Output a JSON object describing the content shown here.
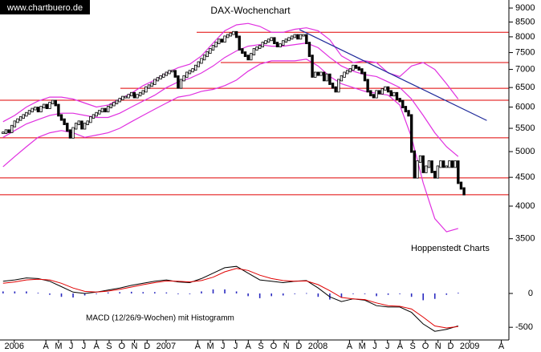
{
  "chart_data": [
    {
      "type": "candlestick",
      "title": "DAX-Wochenchart",
      "watermark": "www.chartbuero.de",
      "source": "Hoppenstedt Charts",
      "log_scale": true,
      "ylim": [
        3200,
        9150
      ],
      "yticks": [
        9000,
        8500,
        8000,
        7500,
        7000,
        6500,
        6000,
        5500,
        5000,
        4500,
        4000,
        3500
      ],
      "xlim": [
        0,
        40.1
      ],
      "xticks": [
        {
          "value": 1,
          "label": "2006"
        },
        {
          "value": 3.5,
          "label": "A"
        },
        {
          "value": 4.5,
          "label": "M"
        },
        {
          "value": 5.5,
          "label": "J"
        },
        {
          "value": 6.5,
          "label": "J"
        },
        {
          "value": 7.5,
          "label": "A"
        },
        {
          "value": 8.5,
          "label": "S"
        },
        {
          "value": 9.5,
          "label": "O"
        },
        {
          "value": 10.5,
          "label": "N"
        },
        {
          "value": 11.5,
          "label": "D"
        },
        {
          "value": 13,
          "label": "2007"
        },
        {
          "value": 15.5,
          "label": "A"
        },
        {
          "value": 16.5,
          "label": "M"
        },
        {
          "value": 17.5,
          "label": "J"
        },
        {
          "value": 18.5,
          "label": "J"
        },
        {
          "value": 19.5,
          "label": "A"
        },
        {
          "value": 20.5,
          "label": "S"
        },
        {
          "value": 21.5,
          "label": "O"
        },
        {
          "value": 22.5,
          "label": "N"
        },
        {
          "value": 23.5,
          "label": "D"
        },
        {
          "value": 25,
          "label": "2008"
        },
        {
          "value": 27.5,
          "label": "A"
        },
        {
          "value": 28.5,
          "label": "M"
        },
        {
          "value": 29.5,
          "label": "J"
        },
        {
          "value": 30.5,
          "label": "J"
        },
        {
          "value": 31.5,
          "label": "A"
        },
        {
          "value": 32.5,
          "label": "S"
        },
        {
          "value": 33.5,
          "label": "O"
        },
        {
          "value": 34.5,
          "label": "N"
        },
        {
          "value": 35.5,
          "label": "D"
        },
        {
          "value": 37,
          "label": "2009"
        },
        {
          "value": 39.5,
          "label": "A"
        }
      ],
      "up_color": "#ffffff",
      "down_color": "#000000",
      "values": [
        5400,
        5450,
        5420,
        5550,
        5650,
        5700,
        5750,
        5800,
        5850,
        5900,
        5950,
        5980,
        5900,
        6000,
        6050,
        5980,
        6100,
        6150,
        6050,
        5800,
        5700,
        5600,
        5450,
        5300,
        5500,
        5600,
        5650,
        5500,
        5600,
        5650,
        5750,
        5800,
        5850,
        5900,
        5950,
        5900,
        6000,
        6050,
        6100,
        6150,
        6200,
        6250,
        6250,
        6300,
        6350,
        6250,
        6300,
        6350,
        6400,
        6500,
        6550,
        6600,
        6700,
        6750,
        6800,
        6850,
        6900,
        6950,
        6950,
        6800,
        6500,
        6700,
        6800,
        6900,
        6950,
        7000,
        7100,
        7200,
        7300,
        7400,
        7500,
        7600,
        7700,
        7800,
        7900,
        7850,
        8000,
        8050,
        8100,
        8150,
        8000,
        7600,
        7500,
        7400,
        7300,
        7450,
        7600,
        7650,
        7700,
        7800,
        7850,
        7900,
        7950,
        7800,
        7700,
        7750,
        7850,
        7900,
        7950,
        8000,
        8050,
        7950,
        8050,
        8050,
        7800,
        7400,
        6800,
        6900,
        6850,
        6900,
        6700,
        6850,
        6600,
        6500,
        6400,
        6700,
        6800,
        6900,
        6950,
        7000,
        7100,
        7050,
        7000,
        6900,
        6700,
        6400,
        6300,
        6250,
        6400,
        6350,
        6450,
        6500,
        6400,
        6300,
        6350,
        6200,
        6150,
        6000,
        5900,
        5800,
        5000,
        4500,
        4800,
        4900,
        4600,
        4700,
        4800,
        4600,
        4500,
        4700,
        4800,
        4700,
        4700,
        4800,
        4700,
        4800,
        4400,
        4300,
        4200
      ],
      "bands": {
        "color": "#e030e0",
        "upper": [
          5650,
          5800,
          6000,
          6150,
          6250,
          6250,
          6200,
          6100,
          6000,
          6050,
          6200,
          6350,
          6550,
          6700,
          6900,
          7050,
          7150,
          7400,
          7800,
          8200,
          8400,
          8450,
          8350,
          8150,
          8150,
          8250,
          8300,
          8200,
          7900,
          7400,
          7200,
          7250,
          7200,
          6900,
          6800,
          7100,
          7200,
          7000,
          6600,
          6200
        ],
        "middle": [
          5300,
          5450,
          5600,
          5700,
          5800,
          5850,
          5850,
          5800,
          5750,
          5750,
          5850,
          6000,
          6150,
          6300,
          6500,
          6650,
          6750,
          6900,
          7100,
          7350,
          7550,
          7700,
          7750,
          7700,
          7700,
          7750,
          7800,
          7650,
          7350,
          7100,
          6950,
          6850,
          6800,
          6650,
          6500,
          6200,
          5800,
          5400,
          5100,
          4900
        ],
        "lower": [
          4700,
          4900,
          5100,
          5300,
          5400,
          5450,
          5400,
          5300,
          5350,
          5400,
          5500,
          5650,
          5800,
          5950,
          6100,
          6250,
          6300,
          6400,
          6450,
          6550,
          6700,
          6950,
          7150,
          7250,
          7250,
          7250,
          7300,
          7100,
          6800,
          6600,
          6500,
          6400,
          6350,
          6300,
          6050,
          5300,
          4400,
          3800,
          3600,
          3650
        ]
      },
      "levels": {
        "color": "#e00000",
        "values": [
          8150,
          7200,
          6480,
          6170,
          5290,
          4490,
          4190
        ]
      },
      "trendline": {
        "color": "#1f2a9a",
        "x": [
          23.55,
          38.35
        ],
        "values": [
          8240,
          5680
        ]
      }
    },
    {
      "type": "macd",
      "label": "MACD (12/26/9-Wochen) mit Histogramm",
      "ylim": [
        -640,
        450
      ],
      "yticks": [
        0,
        -500
      ],
      "series": [
        {
          "color": "#000000",
          "values": [
            180,
            200,
            230,
            220,
            180,
            100,
            20,
            0,
            20,
            50,
            80,
            120,
            150,
            180,
            200,
            170,
            160,
            220,
            300,
            380,
            400,
            300,
            200,
            180,
            160,
            180,
            190,
            80,
            -50,
            -120,
            -80,
            -100,
            -180,
            -200,
            -200,
            -280,
            -450,
            -560,
            -530,
            -480
          ]
        },
        {
          "color": "#e00000",
          "values": [
            150,
            170,
            200,
            210,
            200,
            150,
            80,
            30,
            20,
            35,
            60,
            95,
            130,
            160,
            185,
            180,
            170,
            190,
            240,
            320,
            370,
            340,
            270,
            220,
            190,
            180,
            185,
            130,
            40,
            -60,
            -80,
            -90,
            -140,
            -180,
            -190,
            -230,
            -350,
            -480,
            -510,
            -490
          ]
        }
      ],
      "histogram": {
        "color": "#2a2ac0",
        "values": [
          30,
          30,
          30,
          10,
          -20,
          -50,
          -60,
          -30,
          0,
          15,
          20,
          25,
          20,
          20,
          15,
          -10,
          -10,
          30,
          60,
          60,
          30,
          -40,
          -70,
          -40,
          -30,
          0,
          5,
          -50,
          -90,
          -60,
          0,
          -10,
          -40,
          -20,
          -10,
          -50,
          -100,
          -80,
          -20,
          10
        ]
      }
    }
  ]
}
